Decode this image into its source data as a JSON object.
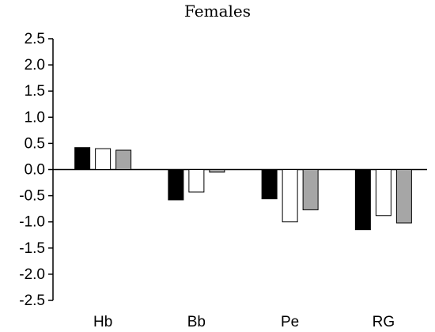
{
  "chart_data": {
    "type": "bar",
    "title": "Females",
    "xlabel": "",
    "ylabel": "",
    "categories": [
      "Hb",
      "Bb",
      "Pe",
      "RG"
    ],
    "series": [
      {
        "values": [
          0.42,
          -0.58,
          -0.56,
          -1.15
        ],
        "color": "#000000"
      },
      {
        "values": [
          0.4,
          -0.43,
          -1.0,
          -0.88
        ],
        "color": "#ffffff"
      },
      {
        "values": [
          0.37,
          -0.05,
          -0.77,
          -1.02
        ],
        "color": "#a6a6a6"
      }
    ],
    "ylim": [
      -2.5,
      2.5
    ],
    "yticks": [
      "2.5",
      "2.0",
      "1.5",
      "1.0",
      "0.5",
      "0.0",
      "-0.5",
      "-1.0",
      "-1.5",
      "-2.0",
      "-2.5"
    ],
    "ytick_values": [
      2.5,
      2.0,
      1.5,
      1.0,
      0.5,
      0.0,
      -0.5,
      -1.0,
      -1.5,
      -2.0,
      -2.5
    ],
    "grid": false,
    "legend": "none"
  }
}
